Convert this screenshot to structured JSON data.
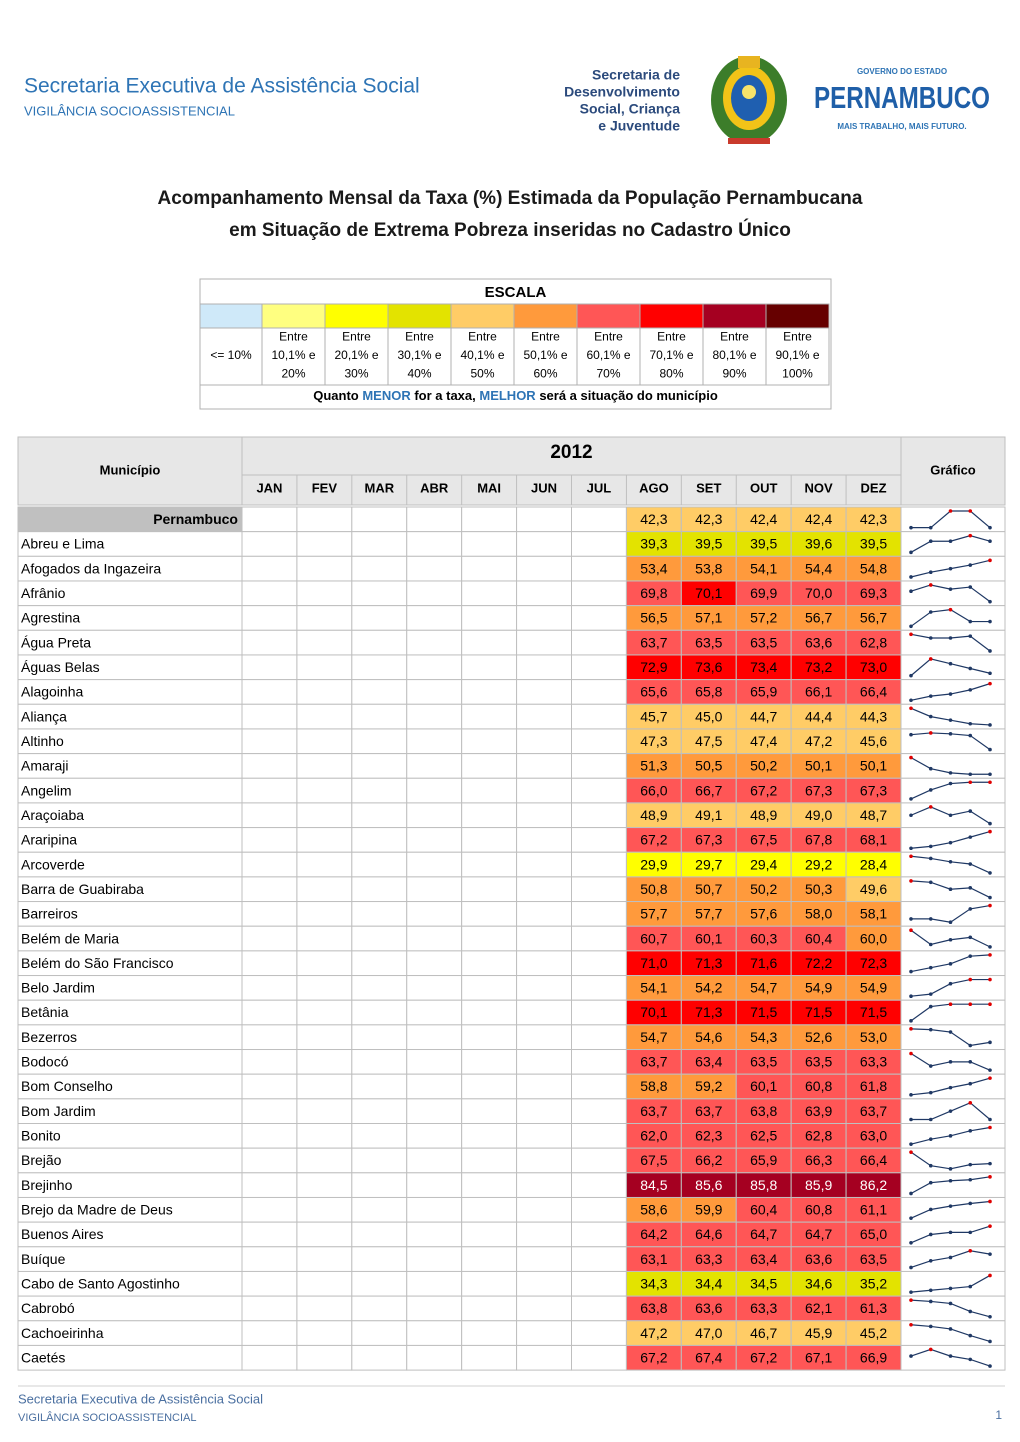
{
  "header": {
    "title": "Secretaria Executiva de Assistência Social",
    "subtitle": "VIGILÂNCIA SOCIOASSISTENCIAL",
    "sds_logo": [
      "Secretaria de",
      "Desenvolvimento",
      "Social, Criança",
      "e Juventude"
    ],
    "state_logo": {
      "top": "GOVERNO DO ESTADO",
      "name": "PERNAMBUCO",
      "tagline": "MAIS TRABALHO, MAIS FUTURO."
    }
  },
  "title": [
    "Acompanhamento Mensal da Taxa (%) Estimada da População Pernambucana",
    "em Situação de Extrema Pobreza inseridas no Cadastro Único"
  ],
  "scale": {
    "title": "ESCALA",
    "bins": [
      {
        "label": [
          "<= 10%"
        ],
        "upper": 10,
        "color": "#cfe9f9",
        "text": "#000"
      },
      {
        "label": [
          "Entre",
          "10,1% e",
          "20%"
        ],
        "upper": 20,
        "color": "#ffff80",
        "text": "#000"
      },
      {
        "label": [
          "Entre",
          "20,1% e",
          "30%"
        ],
        "upper": 30,
        "color": "#ffff00",
        "text": "#000"
      },
      {
        "label": [
          "Entre",
          "30,1% e",
          "40%"
        ],
        "upper": 40,
        "color": "#e3e300",
        "text": "#000"
      },
      {
        "label": [
          "Entre",
          "40,1% e",
          "50%"
        ],
        "upper": 50,
        "color": "#ffcc66",
        "text": "#000"
      },
      {
        "label": [
          "Entre",
          "50,1% e",
          "60%"
        ],
        "upper": 60,
        "color": "#ff9a3c",
        "text": "#000"
      },
      {
        "label": [
          "Entre",
          "60,1% e",
          "70%"
        ],
        "upper": 70,
        "color": "#ff5656",
        "text": "#000"
      },
      {
        "label": [
          "Entre",
          "70,1% e",
          "80%"
        ],
        "upper": 80,
        "color": "#ff0000",
        "text": "#000"
      },
      {
        "label": [
          "Entre",
          "80,1% e",
          "90%"
        ],
        "upper": 90,
        "color": "#a50021",
        "text": "#fff"
      },
      {
        "label": [
          "Entre",
          "90,1% e",
          "100%"
        ],
        "upper": 100,
        "color": "#660000",
        "text": "#fff"
      }
    ],
    "note": [
      {
        "text": "Quanto ",
        "color": "#000"
      },
      {
        "text": "MENOR",
        "color": "#2e74b5"
      },
      {
        "text": " for a taxa, ",
        "color": "#000"
      },
      {
        "text": "MELHOR",
        "color": "#2e74b5"
      },
      {
        "text": " será a situação do município",
        "color": "#000"
      }
    ]
  },
  "table": {
    "municipio": "Município",
    "year": "2012",
    "chart": "Gráfico",
    "months": [
      "JAN",
      "FEV",
      "MAR",
      "ABR",
      "MAI",
      "JUN",
      "JUL",
      "AGO",
      "SET",
      "OUT",
      "NOV",
      "DEZ"
    ],
    "rows": [
      {
        "name": "Pernambuco",
        "values": [
          null,
          null,
          null,
          null,
          null,
          null,
          null,
          "42,3",
          "42,3",
          "42,4",
          "42,4",
          "42,3"
        ]
      },
      {
        "name": "Abreu e Lima",
        "values": [
          null,
          null,
          null,
          null,
          null,
          null,
          null,
          "39,3",
          "39,5",
          "39,5",
          "39,6",
          "39,5"
        ]
      },
      {
        "name": "Afogados da Ingazeira",
        "values": [
          null,
          null,
          null,
          null,
          null,
          null,
          null,
          "53,4",
          "53,8",
          "54,1",
          "54,4",
          "54,8"
        ]
      },
      {
        "name": "Afrânio",
        "values": [
          null,
          null,
          null,
          null,
          null,
          null,
          null,
          "69,8",
          "70,1",
          "69,9",
          "70,0",
          "69,3"
        ]
      },
      {
        "name": "Agrestina",
        "values": [
          null,
          null,
          null,
          null,
          null,
          null,
          null,
          "56,5",
          "57,1",
          "57,2",
          "56,7",
          "56,7"
        ]
      },
      {
        "name": "Água Preta",
        "values": [
          null,
          null,
          null,
          null,
          null,
          null,
          null,
          "63,7",
          "63,5",
          "63,5",
          "63,6",
          "62,8"
        ]
      },
      {
        "name": "Águas Belas",
        "values": [
          null,
          null,
          null,
          null,
          null,
          null,
          null,
          "72,9",
          "73,6",
          "73,4",
          "73,2",
          "73,0"
        ]
      },
      {
        "name": "Alagoinha",
        "values": [
          null,
          null,
          null,
          null,
          null,
          null,
          null,
          "65,6",
          "65,8",
          "65,9",
          "66,1",
          "66,4"
        ]
      },
      {
        "name": "Aliança",
        "values": [
          null,
          null,
          null,
          null,
          null,
          null,
          null,
          "45,7",
          "45,0",
          "44,7",
          "44,4",
          "44,3"
        ]
      },
      {
        "name": "Altinho",
        "values": [
          null,
          null,
          null,
          null,
          null,
          null,
          null,
          "47,3",
          "47,5",
          "47,4",
          "47,2",
          "45,6"
        ]
      },
      {
        "name": "Amaraji",
        "values": [
          null,
          null,
          null,
          null,
          null,
          null,
          null,
          "51,3",
          "50,5",
          "50,2",
          "50,1",
          "50,1"
        ]
      },
      {
        "name": "Angelim",
        "values": [
          null,
          null,
          null,
          null,
          null,
          null,
          null,
          "66,0",
          "66,7",
          "67,2",
          "67,3",
          "67,3"
        ]
      },
      {
        "name": "Araçoiaba",
        "values": [
          null,
          null,
          null,
          null,
          null,
          null,
          null,
          "48,9",
          "49,1",
          "48,9",
          "49,0",
          "48,7"
        ]
      },
      {
        "name": "Araripina",
        "values": [
          null,
          null,
          null,
          null,
          null,
          null,
          null,
          "67,2",
          "67,3",
          "67,5",
          "67,8",
          "68,1"
        ]
      },
      {
        "name": "Arcoverde",
        "values": [
          null,
          null,
          null,
          null,
          null,
          null,
          null,
          "29,9",
          "29,7",
          "29,4",
          "29,2",
          "28,4"
        ]
      },
      {
        "name": "Barra de Guabiraba",
        "values": [
          null,
          null,
          null,
          null,
          null,
          null,
          null,
          "50,8",
          "50,7",
          "50,2",
          "50,3",
          "49,6"
        ]
      },
      {
        "name": "Barreiros",
        "values": [
          null,
          null,
          null,
          null,
          null,
          null,
          null,
          "57,7",
          "57,7",
          "57,6",
          "58,0",
          "58,1"
        ]
      },
      {
        "name": "Belém de Maria",
        "values": [
          null,
          null,
          null,
          null,
          null,
          null,
          null,
          "60,7",
          "60,1",
          "60,3",
          "60,4",
          "60,0"
        ]
      },
      {
        "name": "Belém do São Francisco",
        "values": [
          null,
          null,
          null,
          null,
          null,
          null,
          null,
          "71,0",
          "71,3",
          "71,6",
          "72,2",
          "72,3"
        ]
      },
      {
        "name": "Belo Jardim",
        "values": [
          null,
          null,
          null,
          null,
          null,
          null,
          null,
          "54,1",
          "54,2",
          "54,7",
          "54,9",
          "54,9"
        ]
      },
      {
        "name": "Betânia",
        "values": [
          null,
          null,
          null,
          null,
          null,
          null,
          null,
          "70,1",
          "71,3",
          "71,5",
          "71,5",
          "71,5"
        ]
      },
      {
        "name": "Bezerros",
        "values": [
          null,
          null,
          null,
          null,
          null,
          null,
          null,
          "54,7",
          "54,6",
          "54,3",
          "52,6",
          "53,0"
        ]
      },
      {
        "name": "Bodocó",
        "values": [
          null,
          null,
          null,
          null,
          null,
          null,
          null,
          "63,7",
          "63,4",
          "63,5",
          "63,5",
          "63,3"
        ]
      },
      {
        "name": "Bom Conselho",
        "values": [
          null,
          null,
          null,
          null,
          null,
          null,
          null,
          "58,8",
          "59,2",
          "60,1",
          "60,8",
          "61,8"
        ]
      },
      {
        "name": "Bom Jardim",
        "values": [
          null,
          null,
          null,
          null,
          null,
          null,
          null,
          "63,7",
          "63,7",
          "63,8",
          "63,9",
          "63,7"
        ]
      },
      {
        "name": "Bonito",
        "values": [
          null,
          null,
          null,
          null,
          null,
          null,
          null,
          "62,0",
          "62,3",
          "62,5",
          "62,8",
          "63,0"
        ]
      },
      {
        "name": "Brejão",
        "values": [
          null,
          null,
          null,
          null,
          null,
          null,
          null,
          "67,5",
          "66,2",
          "65,9",
          "66,3",
          "66,4"
        ]
      },
      {
        "name": "Brejinho",
        "values": [
          null,
          null,
          null,
          null,
          null,
          null,
          null,
          "84,5",
          "85,6",
          "85,8",
          "85,9",
          "86,2"
        ]
      },
      {
        "name": "Brejo da Madre de Deus",
        "values": [
          null,
          null,
          null,
          null,
          null,
          null,
          null,
          "58,6",
          "59,9",
          "60,4",
          "60,8",
          "61,1"
        ]
      },
      {
        "name": "Buenos Aires",
        "values": [
          null,
          null,
          null,
          null,
          null,
          null,
          null,
          "64,2",
          "64,6",
          "64,7",
          "64,7",
          "65,0"
        ]
      },
      {
        "name": "Buíque",
        "values": [
          null,
          null,
          null,
          null,
          null,
          null,
          null,
          "63,1",
          "63,3",
          "63,4",
          "63,6",
          "63,5"
        ]
      },
      {
        "name": "Cabo de Santo Agostinho",
        "values": [
          null,
          null,
          null,
          null,
          null,
          null,
          null,
          "34,3",
          "34,4",
          "34,5",
          "34,6",
          "35,2"
        ]
      },
      {
        "name": "Cabrobó",
        "values": [
          null,
          null,
          null,
          null,
          null,
          null,
          null,
          "63,8",
          "63,6",
          "63,3",
          "62,1",
          "61,3"
        ]
      },
      {
        "name": "Cachoeirinha",
        "values": [
          null,
          null,
          null,
          null,
          null,
          null,
          null,
          "47,2",
          "47,0",
          "46,7",
          "45,9",
          "45,2"
        ]
      },
      {
        "name": "Caetés",
        "values": [
          null,
          null,
          null,
          null,
          null,
          null,
          null,
          "67,2",
          "67,4",
          "67,2",
          "67,1",
          "66,9"
        ]
      }
    ]
  },
  "footer": {
    "title": "Secretaria Executiva de Assistência Social",
    "subtitle": "VIGILÂNCIA SOCIOASSISTENCIAL",
    "page": "1"
  }
}
